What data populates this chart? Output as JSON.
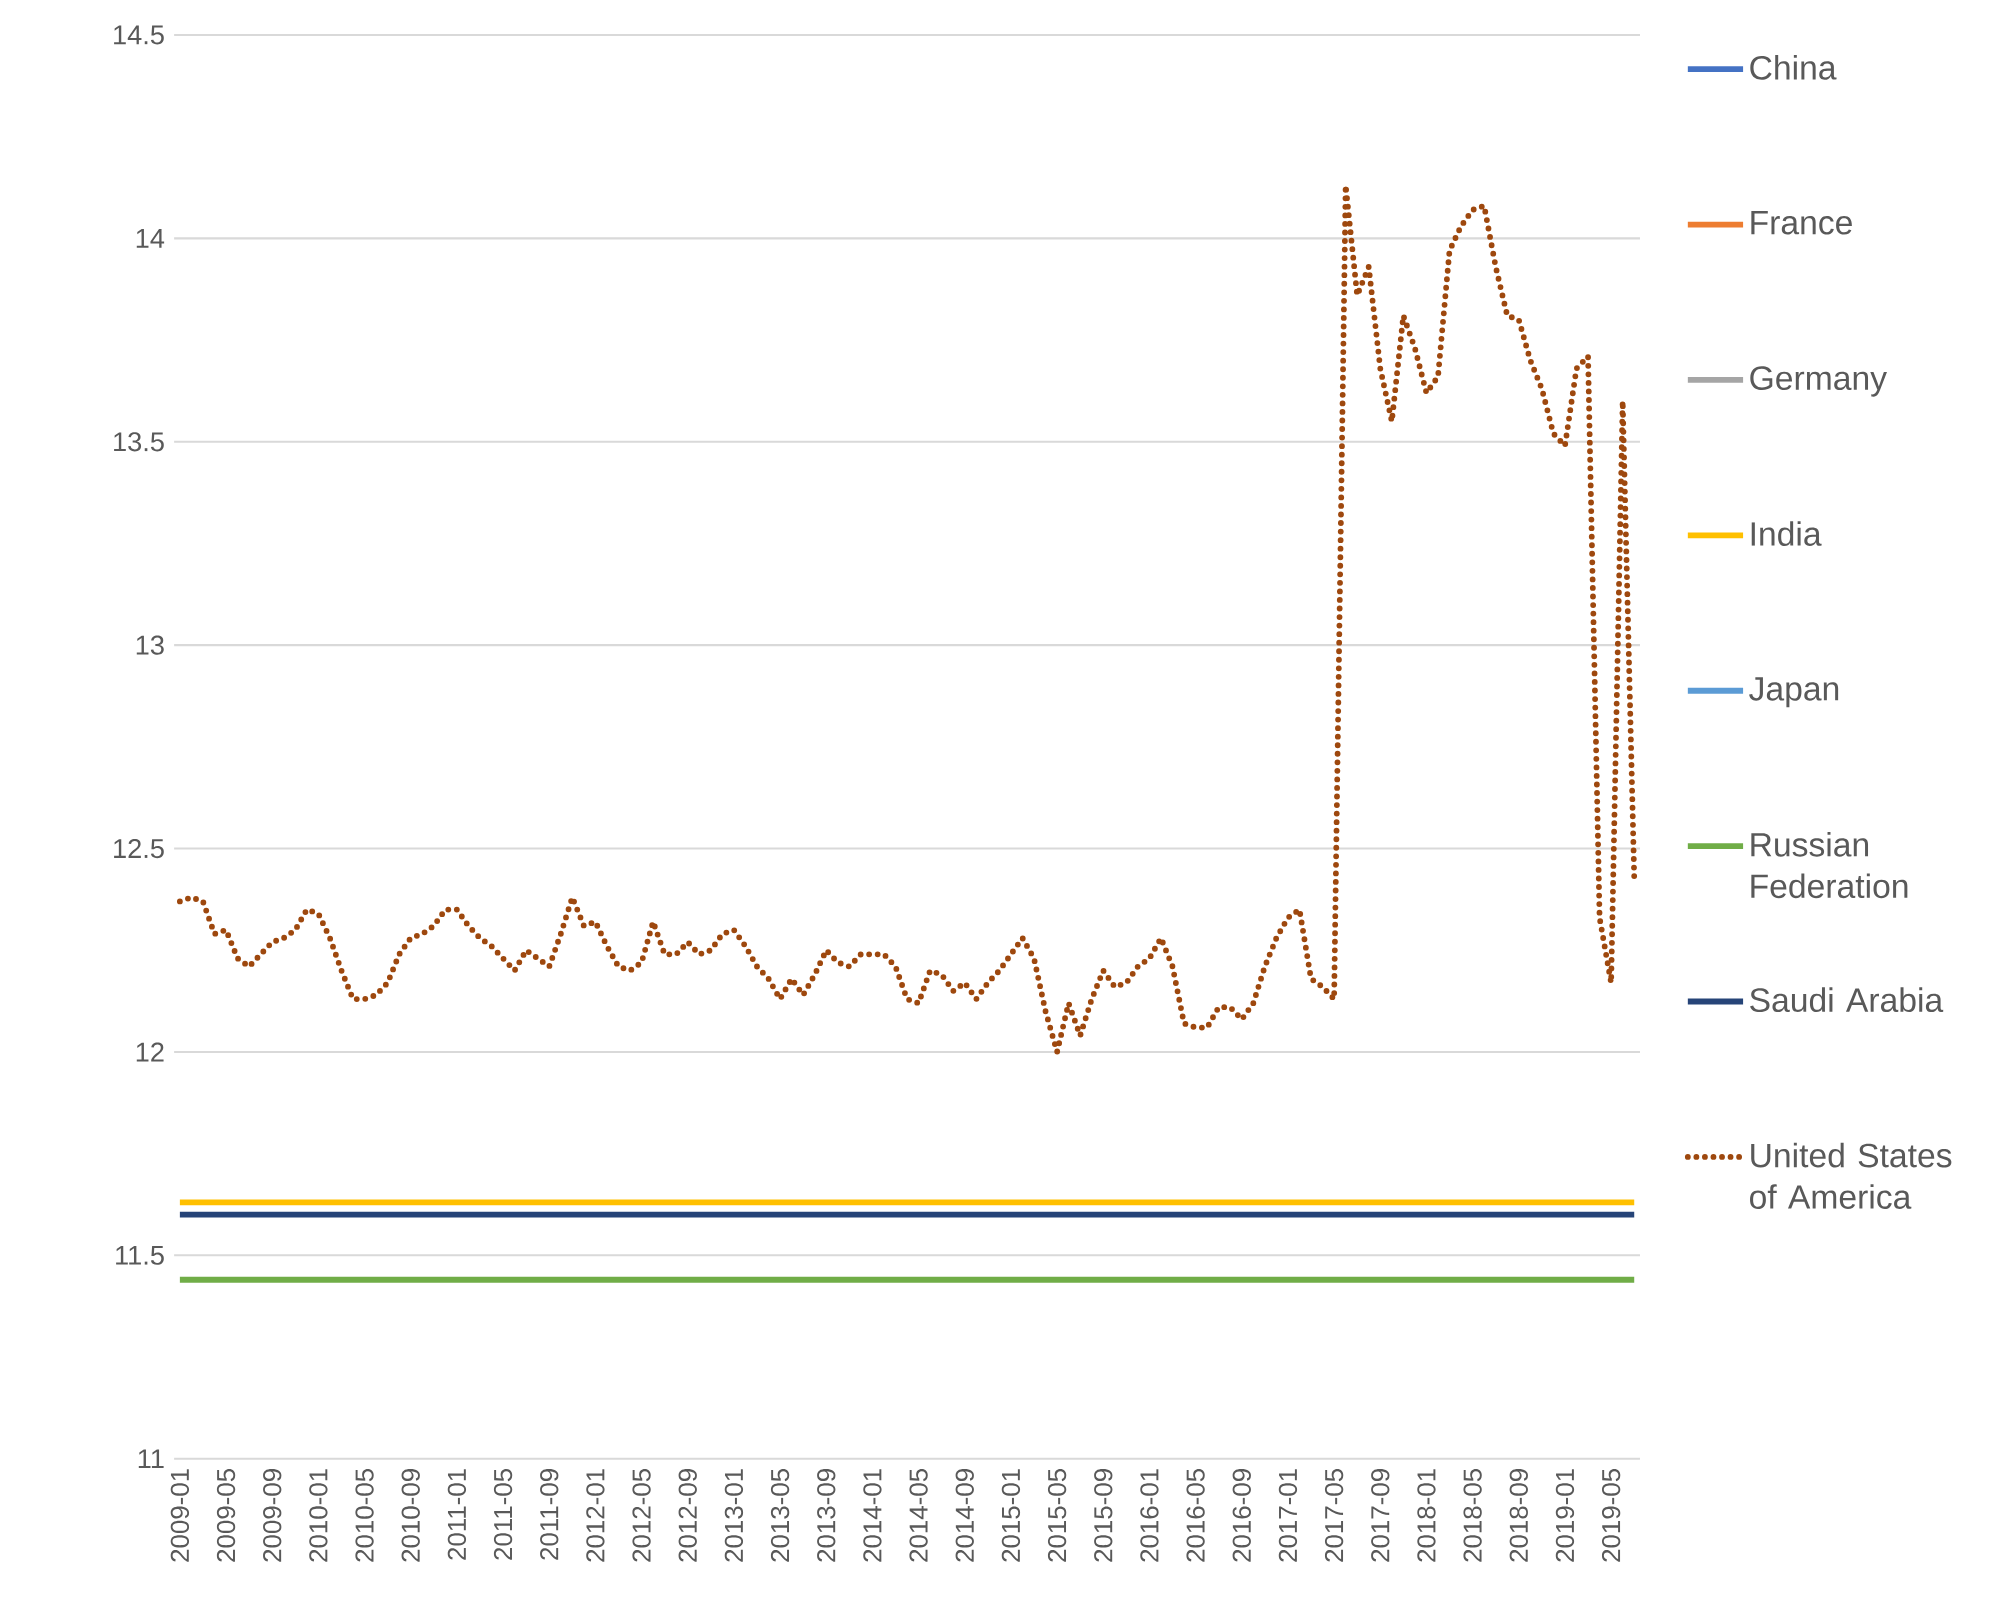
{
  "chart_data": {
    "type": "line",
    "grid": "y",
    "legend": "right",
    "ylim": [
      11,
      14.5
    ],
    "yticks": [
      11,
      11.5,
      12,
      12.5,
      13,
      13.5,
      14,
      14.5
    ],
    "categories": [
      "2009-01",
      null,
      null,
      null,
      "2009-05",
      null,
      null,
      null,
      "2009-09",
      null,
      null,
      null,
      "2010-01",
      null,
      null,
      null,
      "2010-05",
      null,
      null,
      null,
      "2010-09",
      null,
      null,
      null,
      "2011-01",
      null,
      null,
      null,
      "2011-05",
      null,
      null,
      null,
      "2011-09",
      null,
      null,
      null,
      "2012-01",
      null,
      null,
      null,
      "2012-05",
      null,
      null,
      null,
      "2012-09",
      null,
      null,
      null,
      "2013-01",
      null,
      null,
      null,
      "2013-05",
      null,
      null,
      null,
      "2013-09",
      null,
      null,
      null,
      "2014-01",
      null,
      null,
      null,
      "2014-05",
      null,
      null,
      null,
      "2014-09",
      null,
      null,
      null,
      "2015-01",
      null,
      null,
      null,
      "2015-05",
      null,
      null,
      null,
      "2015-09",
      null,
      null,
      null,
      "2016-01",
      null,
      null,
      null,
      "2016-05",
      null,
      null,
      null,
      "2016-09",
      null,
      null,
      null,
      "2017-01",
      null,
      null,
      null,
      "2017-05",
      null,
      null,
      null,
      "2017-09",
      null,
      null,
      null,
      "2018-01",
      null,
      null,
      null,
      "2018-05",
      null,
      null,
      null,
      "2018-09",
      null,
      null,
      null,
      "2019-01",
      null,
      null,
      null,
      "2019-05",
      null,
      null
    ],
    "series": [
      {
        "name": "China",
        "color": "#4472c4",
        "values": [
          null,
          null,
          null,
          null,
          null,
          null,
          null,
          null,
          null,
          null,
          null,
          null,
          null,
          null,
          null,
          null,
          null,
          null,
          null,
          null,
          null,
          null,
          null,
          null,
          null,
          null,
          null,
          null,
          null,
          null,
          null,
          null,
          null,
          null,
          null,
          null,
          null,
          null,
          null,
          null,
          null,
          null,
          null,
          null,
          null,
          null,
          null,
          null,
          null,
          null,
          null,
          null,
          null,
          null,
          null,
          null,
          null,
          null,
          null,
          null,
          null,
          null,
          null,
          null,
          null,
          null,
          null,
          null,
          null,
          null,
          null,
          null,
          null,
          null,
          null,
          null,
          null,
          null,
          null,
          null,
          null,
          null,
          null,
          null,
          null,
          null,
          null,
          null,
          null,
          null,
          null,
          null,
          null,
          null,
          null,
          null,
          null,
          null,
          null,
          null,
          null,
          null,
          null,
          null,
          null,
          null,
          null,
          null,
          null,
          null,
          null,
          null,
          null,
          null,
          null,
          null,
          null,
          null,
          null,
          null,
          null,
          null,
          null,
          null,
          null,
          null,
          null
        ]
      },
      {
        "name": "France",
        "color": "#ed7d31",
        "values": [
          null,
          null,
          null,
          null,
          null,
          null,
          null,
          null,
          null,
          null,
          null,
          null,
          null,
          null,
          null,
          null,
          null,
          null,
          null,
          null,
          null,
          null,
          null,
          null,
          null,
          null,
          null,
          null,
          null,
          null,
          null,
          null,
          null,
          null,
          null,
          null,
          null,
          null,
          null,
          null,
          null,
          null,
          null,
          null,
          null,
          null,
          null,
          null,
          null,
          null,
          null,
          null,
          null,
          null,
          null,
          null,
          null,
          null,
          null,
          null,
          null,
          null,
          null,
          null,
          null,
          null,
          null,
          null,
          null,
          null,
          null,
          null,
          null,
          null,
          null,
          null,
          null,
          null,
          null,
          null,
          null,
          null,
          null,
          null,
          null,
          null,
          null,
          null,
          null,
          null,
          null,
          null,
          null,
          null,
          null,
          null,
          null,
          null,
          null,
          null,
          null,
          null,
          null,
          null,
          null,
          null,
          null,
          null,
          null,
          null,
          null,
          null,
          null,
          null,
          null,
          null,
          null,
          null,
          null,
          null,
          null,
          null,
          null,
          null,
          null,
          null,
          null
        ]
      },
      {
        "name": "Germany",
        "color": "#a5a5a5",
        "values": [
          null,
          null,
          null,
          null,
          null,
          null,
          null,
          null,
          null,
          null,
          null,
          null,
          null,
          null,
          null,
          null,
          null,
          null,
          null,
          null,
          null,
          null,
          null,
          null,
          null,
          null,
          null,
          null,
          null,
          null,
          null,
          null,
          null,
          null,
          null,
          null,
          null,
          null,
          null,
          null,
          null,
          null,
          null,
          null,
          null,
          null,
          null,
          null,
          null,
          null,
          null,
          null,
          null,
          null,
          null,
          null,
          null,
          null,
          null,
          null,
          null,
          null,
          null,
          null,
          null,
          null,
          null,
          null,
          null,
          null,
          null,
          null,
          null,
          null,
          null,
          null,
          null,
          null,
          null,
          null,
          null,
          null,
          null,
          null,
          null,
          null,
          null,
          null,
          null,
          null,
          null,
          null,
          null,
          null,
          null,
          null,
          null,
          null,
          null,
          null,
          null,
          null,
          null,
          null,
          null,
          null,
          null,
          null,
          null,
          null,
          null,
          null,
          null,
          null,
          null,
          null,
          null,
          null,
          null,
          null,
          null,
          null,
          null,
          null,
          null,
          null,
          null
        ]
      },
      {
        "name": "India",
        "color": "#ffc000",
        "values": [
          11.63,
          11.63,
          11.63,
          11.63,
          11.63,
          11.63,
          11.63,
          11.63,
          11.63,
          11.63,
          11.63,
          11.63,
          11.63,
          11.63,
          11.63,
          11.63,
          11.63,
          11.63,
          11.63,
          11.63,
          11.63,
          11.63,
          11.63,
          11.63,
          11.63,
          11.63,
          11.63,
          11.63,
          11.63,
          11.63,
          11.63,
          11.63,
          11.63,
          11.63,
          11.63,
          11.63,
          11.63,
          11.63,
          11.63,
          11.63,
          11.63,
          11.63,
          11.63,
          11.63,
          11.63,
          11.63,
          11.63,
          11.63,
          11.63,
          11.63,
          11.63,
          11.63,
          11.63,
          11.63,
          11.63,
          11.63,
          11.63,
          11.63,
          11.63,
          11.63,
          11.63,
          11.63,
          11.63,
          11.63,
          11.63,
          11.63,
          11.63,
          11.63,
          11.63,
          11.63,
          11.63,
          11.63,
          11.63,
          11.63,
          11.63,
          11.63,
          11.63,
          11.63,
          11.63,
          11.63,
          11.63,
          11.63,
          11.63,
          11.63,
          11.63,
          11.63,
          11.63,
          11.63,
          11.63,
          11.63,
          11.63,
          11.63,
          11.63,
          11.63,
          11.63,
          11.63,
          11.63,
          11.63,
          11.63,
          11.63,
          11.63,
          11.63,
          11.63,
          11.63,
          11.63,
          11.63,
          11.63,
          11.63,
          11.63,
          11.63,
          11.63,
          11.63,
          11.63,
          11.63,
          11.63,
          11.63,
          11.63,
          11.63,
          11.63,
          11.63,
          11.63,
          11.63,
          11.63,
          11.63,
          11.63,
          11.63,
          11.63
        ]
      },
      {
        "name": "Japan",
        "color": "#5b9bd5",
        "values": [
          null,
          null,
          null,
          null,
          null,
          null,
          null,
          null,
          null,
          null,
          null,
          null,
          null,
          null,
          null,
          null,
          null,
          null,
          null,
          null,
          null,
          null,
          null,
          null,
          null,
          null,
          null,
          null,
          null,
          null,
          null,
          null,
          null,
          null,
          null,
          null,
          null,
          null,
          null,
          null,
          null,
          null,
          null,
          null,
          null,
          null,
          null,
          null,
          null,
          null,
          null,
          null,
          null,
          null,
          null,
          null,
          null,
          null,
          null,
          null,
          null,
          null,
          null,
          null,
          null,
          null,
          null,
          null,
          null,
          null,
          null,
          null,
          null,
          null,
          null,
          null,
          null,
          null,
          null,
          null,
          null,
          null,
          null,
          null,
          null,
          null,
          null,
          null,
          null,
          null,
          null,
          null,
          null,
          null,
          null,
          null,
          null,
          null,
          null,
          null,
          null,
          null,
          null,
          null,
          null,
          null,
          null,
          null,
          null,
          null,
          null,
          null,
          null,
          null,
          null,
          null,
          null,
          null,
          null,
          null,
          null,
          null,
          null,
          null,
          null,
          null,
          null
        ]
      },
      {
        "name": "Russian Federation",
        "color": "#70ad47",
        "values": [
          11.44,
          11.44,
          11.44,
          11.44,
          11.44,
          11.44,
          11.44,
          11.44,
          11.44,
          11.44,
          11.44,
          11.44,
          11.44,
          11.44,
          11.44,
          11.44,
          11.44,
          11.44,
          11.44,
          11.44,
          11.44,
          11.44,
          11.44,
          11.44,
          11.44,
          11.44,
          11.44,
          11.44,
          11.44,
          11.44,
          11.44,
          11.44,
          11.44,
          11.44,
          11.44,
          11.44,
          11.44,
          11.44,
          11.44,
          11.44,
          11.44,
          11.44,
          11.44,
          11.44,
          11.44,
          11.44,
          11.44,
          11.44,
          11.44,
          11.44,
          11.44,
          11.44,
          11.44,
          11.44,
          11.44,
          11.44,
          11.44,
          11.44,
          11.44,
          11.44,
          11.44,
          11.44,
          11.44,
          11.44,
          11.44,
          11.44,
          11.44,
          11.44,
          11.44,
          11.44,
          11.44,
          11.44,
          11.44,
          11.44,
          11.44,
          11.44,
          11.44,
          11.44,
          11.44,
          11.44,
          11.44,
          11.44,
          11.44,
          11.44,
          11.44,
          11.44,
          11.44,
          11.44,
          11.44,
          11.44,
          11.44,
          11.44,
          11.44,
          11.44,
          11.44,
          11.44,
          11.44,
          11.44,
          11.44,
          11.44,
          11.44,
          11.44,
          11.44,
          11.44,
          11.44,
          11.44,
          11.44,
          11.44,
          11.44,
          11.44,
          11.44,
          11.44,
          11.44,
          11.44,
          11.44,
          11.44,
          11.44,
          11.44,
          11.44,
          11.44,
          11.44,
          11.44,
          11.44,
          11.44,
          11.44,
          11.44,
          11.44
        ]
      },
      {
        "name": "Saudi Arabia",
        "color": "#264478",
        "values": [
          11.6,
          11.6,
          11.6,
          11.6,
          11.6,
          11.6,
          11.6,
          11.6,
          11.6,
          11.6,
          11.6,
          11.6,
          11.6,
          11.6,
          11.6,
          11.6,
          11.6,
          11.6,
          11.6,
          11.6,
          11.6,
          11.6,
          11.6,
          11.6,
          11.6,
          11.6,
          11.6,
          11.6,
          11.6,
          11.6,
          11.6,
          11.6,
          11.6,
          11.6,
          11.6,
          11.6,
          11.6,
          11.6,
          11.6,
          11.6,
          11.6,
          11.6,
          11.6,
          11.6,
          11.6,
          11.6,
          11.6,
          11.6,
          11.6,
          11.6,
          11.6,
          11.6,
          11.6,
          11.6,
          11.6,
          11.6,
          11.6,
          11.6,
          11.6,
          11.6,
          11.6,
          11.6,
          11.6,
          11.6,
          11.6,
          11.6,
          11.6,
          11.6,
          11.6,
          11.6,
          11.6,
          11.6,
          11.6,
          11.6,
          11.6,
          11.6,
          11.6,
          11.6,
          11.6,
          11.6,
          11.6,
          11.6,
          11.6,
          11.6,
          11.6,
          11.6,
          11.6,
          11.6,
          11.6,
          11.6,
          11.6,
          11.6,
          11.6,
          11.6,
          11.6,
          11.6,
          11.6,
          11.6,
          11.6,
          11.6,
          11.6,
          11.6,
          11.6,
          11.6,
          11.6,
          11.6,
          11.6,
          11.6,
          11.6,
          11.6,
          11.6,
          11.6,
          11.6,
          11.6,
          11.6,
          11.6,
          11.6,
          11.6,
          11.6,
          11.6,
          11.6,
          11.6,
          11.6,
          11.6,
          11.6,
          11.6,
          11.6
        ]
      },
      {
        "name": "United States of America",
        "color": "#9e480e",
        "line_style": "dotted",
        "values": [
          12.37,
          12.38,
          12.37,
          12.29,
          12.3,
          12.23,
          12.21,
          12.24,
          12.27,
          12.28,
          12.3,
          12.35,
          12.34,
          12.28,
          12.2,
          12.13,
          12.13,
          12.14,
          12.17,
          12.24,
          12.28,
          12.29,
          12.31,
          12.35,
          12.35,
          12.31,
          12.28,
          12.26,
          12.23,
          12.2,
          12.25,
          12.23,
          12.21,
          12.29,
          12.38,
          12.31,
          12.32,
          12.26,
          12.21,
          12.2,
          12.22,
          12.32,
          12.24,
          12.24,
          12.27,
          12.24,
          12.25,
          12.29,
          12.3,
          12.26,
          12.21,
          12.18,
          12.13,
          12.18,
          12.14,
          12.19,
          12.25,
          12.22,
          12.21,
          12.24,
          12.24,
          12.24,
          12.21,
          12.13,
          12.12,
          12.2,
          12.19,
          12.15,
          12.17,
          12.13,
          12.17,
          12.2,
          12.24,
          12.28,
          12.23,
          12.1,
          12.0,
          12.12,
          12.04,
          12.13,
          12.2,
          12.16,
          12.17,
          12.21,
          12.23,
          12.28,
          12.21,
          12.07,
          12.06,
          12.06,
          12.11,
          12.11,
          12.08,
          12.12,
          12.21,
          12.28,
          12.33,
          12.35,
          12.18,
          12.16,
          12.13,
          14.13,
          13.86,
          13.93,
          13.68,
          13.55,
          13.81,
          13.73,
          13.62,
          13.66,
          13.97,
          14.03,
          14.07,
          14.08,
          13.93,
          13.81,
          13.8,
          13.7,
          13.63,
          13.52,
          13.49,
          13.68,
          13.71,
          12.33,
          12.17,
          13.6,
          12.43
        ]
      }
    ]
  }
}
